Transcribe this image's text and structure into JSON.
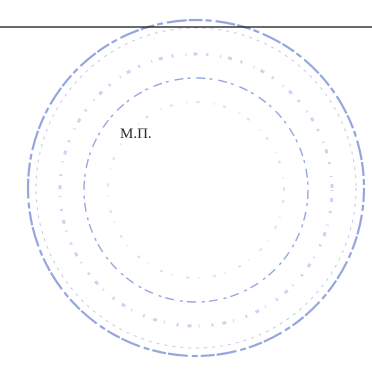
{
  "document": {
    "stamp_label": "М.П."
  }
}
